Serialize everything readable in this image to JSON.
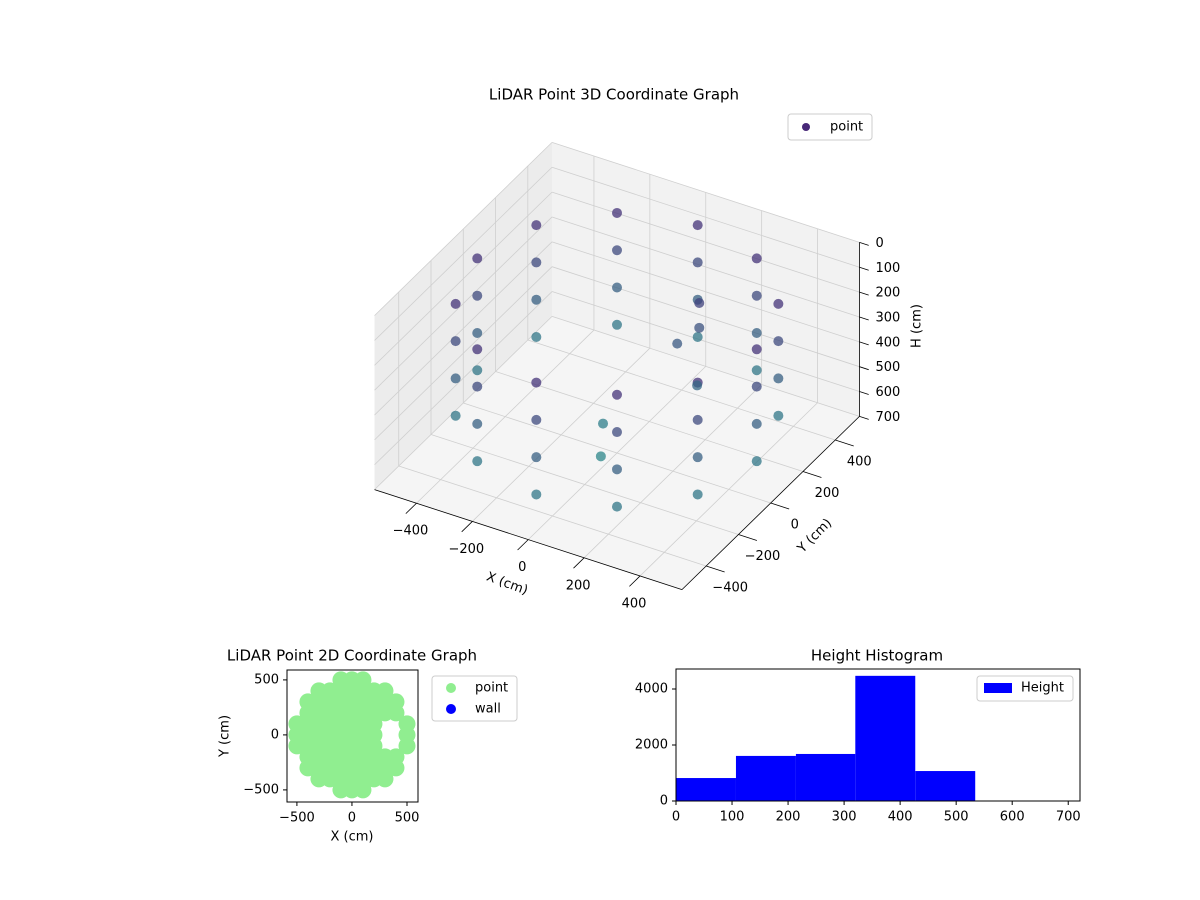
{
  "chart_data": [
    {
      "type": "scatter3d",
      "title": "LiDAR Point 3D Coordinate Graph",
      "xlabel": "X (cm)",
      "ylabel": "Y (cm)",
      "zlabel": "H (cm)",
      "xlim": [
        -550,
        550
      ],
      "ylim": [
        -550,
        550
      ],
      "zlim": [
        700,
        0
      ],
      "xticks": [
        {
          "value": -400,
          "label": "−400"
        },
        {
          "value": -200,
          "label": "−200"
        },
        0,
        200,
        400
      ],
      "yticks": [
        {
          "value": -400,
          "label": "−400"
        },
        {
          "value": -200,
          "label": "−200"
        },
        0,
        200,
        400
      ],
      "zticks": [
        0,
        100,
        200,
        300,
        400,
        500,
        600,
        700
      ],
      "colormap": "viridis",
      "legend": "upper right",
      "grid": true,
      "series": [
        {
          "name": "point",
          "color": "#482878",
          "x": [
            500,
            500,
            500,
            500,
            433,
            433,
            433,
            433,
            250,
            250,
            250,
            250,
            0,
            0,
            0,
            0,
            -250,
            -250,
            -250,
            -250,
            -433,
            -433,
            -433,
            -433,
            -500,
            -500,
            -500,
            -500,
            -433,
            -433,
            -433,
            -433,
            -250,
            -250,
            -250,
            -250,
            0,
            0,
            0,
            0,
            250,
            250,
            250,
            250,
            433,
            433,
            433,
            433,
            150,
            150,
            100,
            200,
            -50,
            0
          ],
          "y": [
            0,
            0,
            0,
            0,
            250,
            250,
            250,
            250,
            433,
            433,
            433,
            433,
            500,
            500,
            500,
            500,
            433,
            433,
            433,
            433,
            250,
            250,
            250,
            250,
            0,
            0,
            0,
            0,
            -250,
            -250,
            -250,
            -250,
            -433,
            -433,
            -433,
            -433,
            -500,
            -500,
            -500,
            -500,
            -433,
            -433,
            -433,
            -433,
            -250,
            -250,
            -250,
            -250,
            250,
            250,
            200,
            150,
            0,
            -100
          ],
          "z": [
            100,
            250,
            400,
            550,
            100,
            250,
            400,
            550,
            100,
            250,
            400,
            550,
            100,
            250,
            400,
            550,
            100,
            250,
            400,
            550,
            100,
            250,
            400,
            550,
            100,
            250,
            400,
            550,
            100,
            250,
            400,
            550,
            100,
            250,
            400,
            550,
            100,
            250,
            400,
            550,
            100,
            250,
            400,
            550,
            100,
            250,
            400,
            550,
            200,
            300,
            350,
            450,
            600,
            650
          ]
        }
      ]
    },
    {
      "type": "scatter",
      "title": "LiDAR Point 2D Coordinate Graph",
      "xlabel": "X (cm)",
      "ylabel": "Y (cm)",
      "xlim": [
        -590,
        600
      ],
      "ylim": [
        -610,
        590
      ],
      "xticks": [
        {
          "value": -500,
          "label": "−500"
        },
        0,
        500
      ],
      "yticks": [
        {
          "value": -500,
          "label": "−500"
        },
        0,
        500
      ],
      "legend": "outside right",
      "series": [
        {
          "name": "point",
          "color": "#90ee90",
          "x": [
            -100,
            0,
            100,
            -300,
            -200,
            -100,
            0,
            100,
            200,
            300,
            -400,
            -300,
            -200,
            -100,
            0,
            100,
            200,
            300,
            400,
            -400,
            -300,
            -200,
            -100,
            0,
            100,
            200,
            300,
            400,
            -500,
            -400,
            -300,
            -200,
            -100,
            0,
            100,
            200,
            500,
            -500,
            -400,
            -300,
            -200,
            -100,
            0,
            100,
            200,
            500,
            -500,
            -400,
            -300,
            -200,
            -100,
            0,
            100,
            200,
            500,
            -400,
            -300,
            -200,
            -100,
            0,
            100,
            200,
            300,
            400,
            -400,
            -300,
            -200,
            -100,
            0,
            100,
            200,
            300,
            400,
            -300,
            -200,
            -100,
            0,
            100,
            200,
            300,
            -100,
            0,
            100
          ],
          "y": [
            500,
            500,
            500,
            400,
            400,
            400,
            400,
            400,
            400,
            400,
            300,
            300,
            300,
            300,
            300,
            300,
            300,
            300,
            300,
            200,
            200,
            200,
            200,
            200,
            200,
            200,
            200,
            200,
            100,
            100,
            100,
            100,
            100,
            100,
            100,
            100,
            100,
            0,
            0,
            0,
            0,
            0,
            0,
            0,
            0,
            0,
            -100,
            -100,
            -100,
            -100,
            -100,
            -100,
            -100,
            -100,
            -100,
            -200,
            -200,
            -200,
            -200,
            -200,
            -200,
            -200,
            -200,
            -200,
            -300,
            -300,
            -300,
            -300,
            -300,
            -300,
            -300,
            -300,
            -300,
            -400,
            -400,
            -400,
            -400,
            -400,
            -400,
            -400,
            -500,
            -500,
            -500
          ]
        },
        {
          "name": "wall",
          "color": "#0000ff",
          "x": [],
          "y": []
        }
      ]
    },
    {
      "type": "histogram",
      "title": "Height Histogram",
      "name": "Height",
      "color": "#0000ff",
      "bins": [
        0,
        107,
        214,
        320,
        427,
        534
      ],
      "counts": [
        820,
        1610,
        1680,
        4470,
        1070
      ],
      "xlim": [
        0,
        721
      ],
      "ylim": [
        0,
        4714
      ],
      "xticks": [
        0,
        100,
        200,
        300,
        400,
        500,
        600,
        700
      ],
      "yticks": [
        0,
        2000,
        4000
      ],
      "legend": "upper right"
    }
  ]
}
